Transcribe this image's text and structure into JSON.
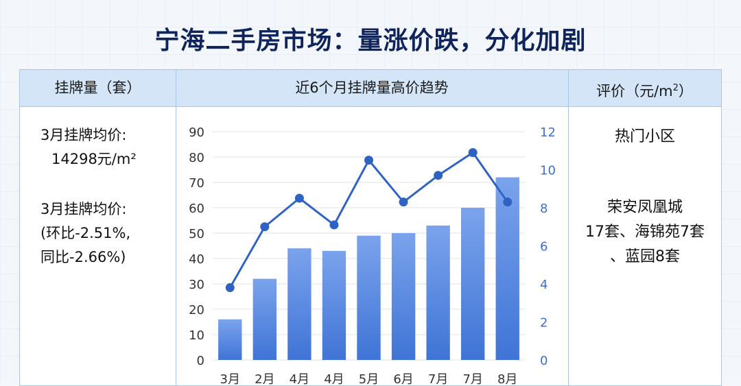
{
  "title": "宁海二手房市场：量涨价跌，分化加剧",
  "headers": {
    "left": "挂牌量（套）",
    "center": "近6个月挂牌量高价趋势",
    "right_prefix": "评价（元/m",
    "right_sup": "2",
    "right_suffix": "）"
  },
  "left_panel": {
    "line1": "3月挂牌均价:",
    "line2": "14298元/m²",
    "line3": "3月挂牌均价:",
    "line4": "(环比-2.51%,",
    "line5": "同比-2.66%)"
  },
  "right_panel": {
    "label": "热门小区",
    "line1": "荣安凤凰城",
    "line2": "17套、海锦苑7套",
    "line3": "、蓝园8套"
  },
  "colors": {
    "bar_top": "#7ba3ec",
    "bar_bottom": "#3f74d6",
    "line": "#2f63c3",
    "right_axis": "#3d6fcf"
  },
  "chart_data": {
    "type": "bar",
    "categories": [
      "3月",
      "2月",
      "4月",
      "4月",
      "5月",
      "6月",
      "7月",
      "7月",
      "8月"
    ],
    "bar_values": [
      16,
      32,
      44,
      43,
      49,
      50,
      53,
      60,
      72
    ],
    "line_values": [
      3.8,
      7.0,
      8.5,
      7.1,
      10.5,
      8.3,
      9.7,
      10.9,
      8.3
    ],
    "ylim_left": [
      0,
      90
    ],
    "ylim_right": [
      0,
      12
    ],
    "yticks_left": [
      0,
      10,
      20,
      30,
      40,
      50,
      60,
      70,
      80,
      90
    ],
    "yticks_right": [
      0,
      2,
      4,
      6,
      8,
      10,
      12
    ],
    "grid": true
  }
}
